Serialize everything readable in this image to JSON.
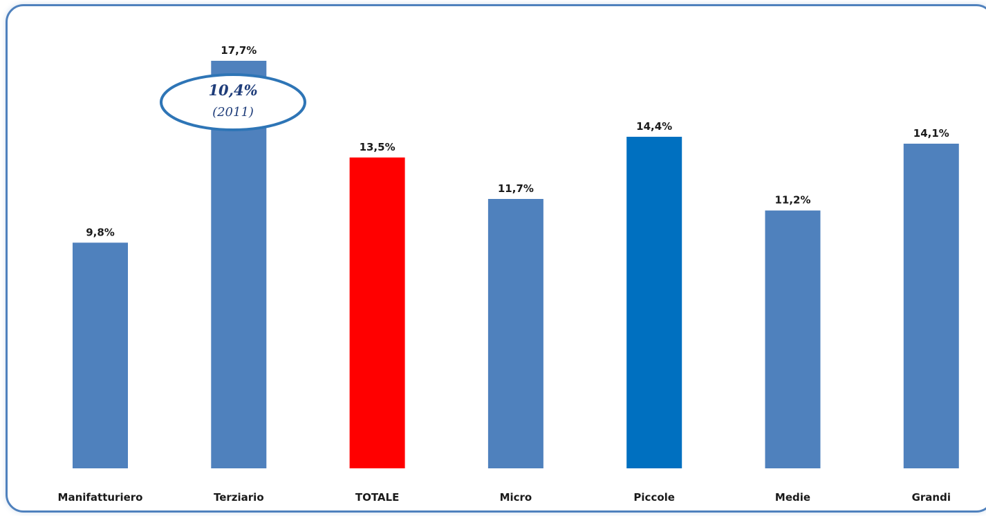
{
  "chart_data": {
    "type": "bar",
    "categories": [
      "Manifatturiero",
      "Terziario",
      "TOTALE",
      "Micro",
      "Piccole",
      "Medie",
      "Grandi"
    ],
    "values": [
      9.8,
      17.7,
      13.5,
      11.7,
      14.4,
      11.2,
      14.1
    ],
    "value_labels": [
      "9,8%",
      "17,7%",
      "13,5%",
      "11,7%",
      "14,4%",
      "11,2%",
      "14,1%"
    ],
    "colors": [
      "#4f81bd",
      "#4f81bd",
      "#ff0000",
      "#4f81bd",
      "#0070c0",
      "#4f81bd",
      "#4f81bd"
    ],
    "ylim": [
      0,
      17.7
    ],
    "grid": false,
    "legend": "none",
    "annotation": {
      "category": "Terziario",
      "value_text": "10,4%",
      "year_text": "(2011)",
      "border_color": "#2e75b6"
    }
  }
}
